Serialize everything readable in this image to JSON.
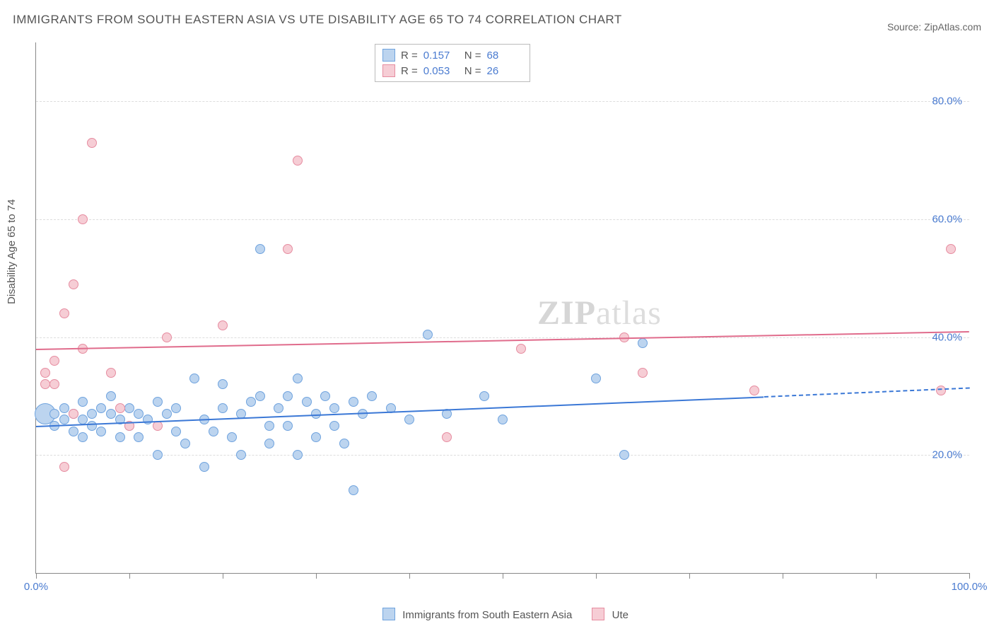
{
  "title": "IMMIGRANTS FROM SOUTH EASTERN ASIA VS UTE DISABILITY AGE 65 TO 74 CORRELATION CHART",
  "source_label": "Source: ",
  "source_value": "ZipAtlas.com",
  "ylabel": "Disability Age 65 to 74",
  "watermark_a": "ZIP",
  "watermark_b": "atlas",
  "chart": {
    "type": "scatter",
    "xlim": [
      0,
      100
    ],
    "ylim": [
      0,
      90
    ],
    "xtick_major": [
      0,
      10,
      20,
      30,
      40,
      50,
      60,
      70,
      80,
      90,
      100
    ],
    "xtick_labels": [
      {
        "x": 0,
        "t": "0.0%"
      },
      {
        "x": 100,
        "t": "100.0%"
      }
    ],
    "ytick_labels": [
      {
        "y": 20,
        "t": "20.0%"
      },
      {
        "y": 40,
        "t": "40.0%"
      },
      {
        "y": 60,
        "t": "60.0%"
      },
      {
        "y": 80,
        "t": "80.0%"
      }
    ],
    "background_color": "#ffffff",
    "grid_color": "#dddddd"
  },
  "series": [
    {
      "name": "Immigrants from South Eastern Asia",
      "fill": "#bcd4ef",
      "stroke": "#6fa3de",
      "line_color": "#3b78d6",
      "marker_r": 7,
      "R": "0.157",
      "N": "68",
      "trend": {
        "x1": 0,
        "y1": 25,
        "x2": 78,
        "y2": 30,
        "dash_to_x": 100,
        "dash_to_y": 31.5
      },
      "points": [
        {
          "x": 1,
          "y": 27,
          "r": 15
        },
        {
          "x": 2,
          "y": 25
        },
        {
          "x": 2,
          "y": 27
        },
        {
          "x": 3,
          "y": 26
        },
        {
          "x": 3,
          "y": 28
        },
        {
          "x": 4,
          "y": 24
        },
        {
          "x": 4,
          "y": 27
        },
        {
          "x": 5,
          "y": 26
        },
        {
          "x": 5,
          "y": 29
        },
        {
          "x": 5,
          "y": 23
        },
        {
          "x": 6,
          "y": 27
        },
        {
          "x": 6,
          "y": 25
        },
        {
          "x": 7,
          "y": 28
        },
        {
          "x": 7,
          "y": 24
        },
        {
          "x": 8,
          "y": 27
        },
        {
          "x": 8,
          "y": 30
        },
        {
          "x": 9,
          "y": 26
        },
        {
          "x": 9,
          "y": 23
        },
        {
          "x": 10,
          "y": 28
        },
        {
          "x": 10,
          "y": 25
        },
        {
          "x": 11,
          "y": 27
        },
        {
          "x": 11,
          "y": 23
        },
        {
          "x": 12,
          "y": 26
        },
        {
          "x": 13,
          "y": 29
        },
        {
          "x": 13,
          "y": 20
        },
        {
          "x": 14,
          "y": 27
        },
        {
          "x": 15,
          "y": 24
        },
        {
          "x": 15,
          "y": 28
        },
        {
          "x": 16,
          "y": 22
        },
        {
          "x": 17,
          "y": 33
        },
        {
          "x": 18,
          "y": 26
        },
        {
          "x": 18,
          "y": 18
        },
        {
          "x": 19,
          "y": 24
        },
        {
          "x": 20,
          "y": 28
        },
        {
          "x": 20,
          "y": 32
        },
        {
          "x": 21,
          "y": 23
        },
        {
          "x": 22,
          "y": 27
        },
        {
          "x": 22,
          "y": 20
        },
        {
          "x": 23,
          "y": 29
        },
        {
          "x": 24,
          "y": 30
        },
        {
          "x": 24,
          "y": 55
        },
        {
          "x": 25,
          "y": 25
        },
        {
          "x": 25,
          "y": 22
        },
        {
          "x": 26,
          "y": 28
        },
        {
          "x": 27,
          "y": 30
        },
        {
          "x": 27,
          "y": 25
        },
        {
          "x": 28,
          "y": 33
        },
        {
          "x": 28,
          "y": 20
        },
        {
          "x": 29,
          "y": 29
        },
        {
          "x": 30,
          "y": 23
        },
        {
          "x": 30,
          "y": 27
        },
        {
          "x": 31,
          "y": 30
        },
        {
          "x": 32,
          "y": 25
        },
        {
          "x": 32,
          "y": 28
        },
        {
          "x": 33,
          "y": 22
        },
        {
          "x": 34,
          "y": 14
        },
        {
          "x": 34,
          "y": 29
        },
        {
          "x": 35,
          "y": 27
        },
        {
          "x": 36,
          "y": 30
        },
        {
          "x": 38,
          "y": 28
        },
        {
          "x": 40,
          "y": 26
        },
        {
          "x": 42,
          "y": 40.5
        },
        {
          "x": 44,
          "y": 27
        },
        {
          "x": 48,
          "y": 30
        },
        {
          "x": 50,
          "y": 26
        },
        {
          "x": 63,
          "y": 20
        },
        {
          "x": 65,
          "y": 39
        },
        {
          "x": 60,
          "y": 33
        }
      ]
    },
    {
      "name": "Ute",
      "fill": "#f6cdd5",
      "stroke": "#e68ca0",
      "line_color": "#e06c8c",
      "marker_r": 7,
      "R": "0.053",
      "N": "26",
      "trend": {
        "x1": 0,
        "y1": 38,
        "x2": 100,
        "y2": 41
      },
      "points": [
        {
          "x": 1,
          "y": 32
        },
        {
          "x": 1,
          "y": 34
        },
        {
          "x": 2,
          "y": 36
        },
        {
          "x": 2,
          "y": 32
        },
        {
          "x": 3,
          "y": 18
        },
        {
          "x": 3,
          "y": 44
        },
        {
          "x": 4,
          "y": 49
        },
        {
          "x": 4,
          "y": 27
        },
        {
          "x": 5,
          "y": 38
        },
        {
          "x": 5,
          "y": 60
        },
        {
          "x": 6,
          "y": 73
        },
        {
          "x": 8,
          "y": 34
        },
        {
          "x": 9,
          "y": 28
        },
        {
          "x": 10,
          "y": 25
        },
        {
          "x": 13,
          "y": 25
        },
        {
          "x": 14,
          "y": 40
        },
        {
          "x": 20,
          "y": 42
        },
        {
          "x": 27,
          "y": 55
        },
        {
          "x": 28,
          "y": 70
        },
        {
          "x": 44,
          "y": 23
        },
        {
          "x": 52,
          "y": 38
        },
        {
          "x": 63,
          "y": 40
        },
        {
          "x": 65,
          "y": 34
        },
        {
          "x": 77,
          "y": 31
        },
        {
          "x": 97,
          "y": 31
        },
        {
          "x": 98,
          "y": 55
        }
      ]
    }
  ]
}
